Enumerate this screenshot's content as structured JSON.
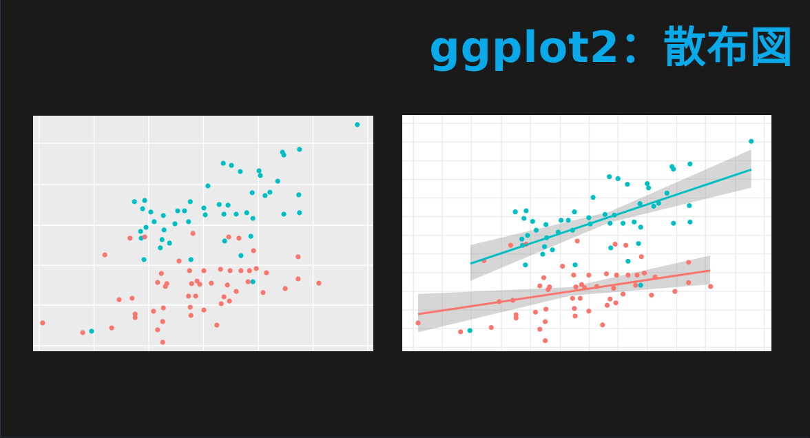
{
  "title": "ggplot2：散布図",
  "chart_data": [
    {
      "type": "scatter",
      "theme": "grey",
      "tick_labels": false,
      "grid": true,
      "xlim": [
        0,
        100
      ],
      "ylim": [
        0,
        100
      ],
      "xticks": [
        1.8,
        17.9,
        34.0,
        50.1,
        66.2,
        82.3,
        98.4
      ],
      "yticks": [
        2.3,
        19.6,
        36.5,
        53.5,
        70.8,
        88.3
      ],
      "series": [
        {
          "color": "#00bfc4",
          "x": [
            95.3,
            78.3,
            73.3,
            73.7,
            55.9,
            58.3,
            60.9,
            66.4,
            66.8,
            51.4,
            71.9,
            69.6,
            68.2,
            64.4,
            78.1,
            29.8,
            32.8,
            46.2,
            54.7,
            57.3,
            32.2,
            34.6,
            38.3,
            42.5,
            44.5,
            50.2,
            50.6,
            56.1,
            59.7,
            62.8,
            64.6,
            73.7,
            78.3,
            35.6,
            33.2,
            31.6,
            38.5,
            41.7,
            45.7,
            31.8,
            37.9,
            40.1,
            56.3,
            64.0,
            37.4,
            61.1,
            32.6,
            46.4,
            64.6,
            17.2
          ],
          "values": [
            96.2,
            85.7,
            84.5,
            83.3,
            79.8,
            78.9,
            76.3,
            76.6,
            74.6,
            70.2,
            72.2,
            67.5,
            66.1,
            67.3,
            66.4,
            63.5,
            64.0,
            63.5,
            62.3,
            62.0,
            60.5,
            59.1,
            57.6,
            59.6,
            59.6,
            60.8,
            57.9,
            58.2,
            58.2,
            58.8,
            56.4,
            58.2,
            58.8,
            55.0,
            52.6,
            50.9,
            51.5,
            54.1,
            55.0,
            48.0,
            47.4,
            45.9,
            46.8,
            48.8,
            43.9,
            40.6,
            38.9,
            38.9,
            29.5,
            8.5
          ]
        },
        {
          "color": "#f8766d",
          "x": [
            2.8,
            14.6,
            23.1,
            21.1,
            28.5,
            32.8,
            47.0,
            57.5,
            60.5,
            64.8,
            42.9,
            77.9,
            37.7,
            46.0,
            50.2,
            55.1,
            57.9,
            61.1,
            63.6,
            65.6,
            68.6,
            36.6,
            39.3,
            38.9,
            46.6,
            48.2,
            49.0,
            52.4,
            63.2,
            57.1,
            77.9,
            84.0,
            74.1,
            67.6,
            59.7,
            25.3,
            29.1,
            45.7,
            47.8,
            56.1,
            57.7,
            55.3,
            50.2,
            30.0,
            30.0,
            35.4,
            38.3,
            46.2,
            46.4,
            38.1,
            36.6,
            38.1,
            54.0
          ],
          "values": [
            12.0,
            7.9,
            9.9,
            40.9,
            48.0,
            48.5,
            50.0,
            48.5,
            48.0,
            42.7,
            38.3,
            40.1,
            33.0,
            34.2,
            34.2,
            34.8,
            34.2,
            34.2,
            34.2,
            35.1,
            33.3,
            29.2,
            28.7,
            27.5,
            28.7,
            29.8,
            28.4,
            28.9,
            29.5,
            28.1,
            30.7,
            28.9,
            26.6,
            24.9,
            25.4,
            21.9,
            22.5,
            23.4,
            23.4,
            23.1,
            21.3,
            20.2,
            17.5,
            15.8,
            14.3,
            17.0,
            18.4,
            18.7,
            15.2,
            12.6,
            9.1,
            3.8,
            11.1
          ]
        }
      ]
    },
    {
      "type": "scatter",
      "theme": "minimal",
      "tick_labels": false,
      "grid": true,
      "xlim": [
        -1.6,
        100.9
      ],
      "ylim": [
        -1.1,
        108.4
      ],
      "xticks": [
        1.5,
        9.5,
        17.6,
        26.0,
        34.0,
        42.3,
        50.3,
        58.3,
        66.4,
        74.6,
        82.6,
        90.9,
        98.9
      ],
      "yticks": [
        0.7,
        9.4,
        18.0,
        26.7,
        35.3,
        44.0,
        52.6,
        61.3,
        69.9,
        78.6,
        87.2,
        95.9,
        104.5
      ],
      "series": [
        {
          "color": "#00bfc4",
          "x": [
            95.3,
            78.3,
            73.3,
            73.7,
            55.9,
            58.3,
            60.9,
            66.4,
            66.8,
            51.4,
            71.9,
            69.6,
            68.2,
            64.4,
            78.1,
            29.8,
            32.8,
            46.2,
            54.7,
            57.3,
            32.2,
            34.6,
            38.3,
            42.5,
            44.5,
            50.2,
            50.6,
            56.1,
            59.7,
            62.8,
            64.6,
            73.7,
            78.3,
            35.6,
            33.2,
            31.6,
            38.5,
            41.7,
            45.7,
            31.8,
            37.9,
            40.1,
            56.3,
            64.0,
            37.4,
            61.1,
            32.6,
            46.4,
            64.6,
            17.2
          ],
          "values": [
            96.2,
            85.7,
            84.5,
            83.3,
            79.8,
            78.9,
            76.3,
            76.6,
            74.6,
            70.2,
            72.2,
            67.5,
            66.1,
            67.3,
            66.4,
            63.5,
            64.0,
            63.5,
            62.3,
            62.0,
            60.5,
            59.1,
            57.6,
            59.6,
            59.6,
            60.8,
            57.9,
            58.2,
            58.2,
            58.8,
            56.4,
            58.2,
            58.8,
            55.0,
            52.6,
            50.9,
            51.5,
            54.1,
            55.0,
            48.0,
            47.4,
            45.9,
            46.8,
            48.8,
            43.9,
            40.6,
            38.9,
            38.9,
            29.5,
            8.5
          ],
          "fit": {
            "x": [
              17.3,
              95.3
            ],
            "y": [
              39.5,
              83.1
            ]
          },
          "band": {
            "x": [
              17.3,
              56,
              95.3
            ],
            "lower": [
              31.5,
              58.6,
              74.7
            ],
            "upper": [
              48.1,
              63.6,
              92.4
            ]
          }
        },
        {
          "color": "#f8766d",
          "x": [
            2.8,
            14.6,
            23.1,
            21.1,
            28.5,
            32.8,
            47.0,
            57.5,
            60.5,
            64.8,
            42.9,
            77.9,
            37.7,
            46.0,
            50.2,
            55.1,
            57.9,
            61.1,
            63.6,
            65.6,
            68.6,
            36.6,
            39.3,
            38.9,
            46.6,
            48.2,
            49.0,
            52.4,
            63.2,
            57.1,
            77.9,
            84.0,
            74.1,
            67.6,
            59.7,
            25.3,
            29.1,
            45.7,
            47.8,
            56.1,
            57.7,
            55.3,
            50.2,
            30.0,
            30.0,
            35.4,
            38.3,
            46.2,
            46.4,
            38.1,
            36.6,
            38.1,
            54.0
          ],
          "values": [
            12.0,
            7.9,
            9.9,
            40.9,
            48.0,
            48.5,
            50.0,
            48.5,
            48.0,
            42.7,
            38.3,
            40.1,
            33.0,
            34.2,
            34.2,
            34.8,
            34.2,
            34.2,
            34.2,
            35.1,
            33.3,
            29.2,
            28.7,
            27.5,
            28.7,
            29.8,
            28.4,
            28.9,
            29.5,
            28.1,
            30.7,
            28.9,
            26.6,
            24.9,
            25.4,
            21.9,
            22.5,
            23.4,
            23.4,
            23.1,
            21.3,
            20.2,
            17.5,
            15.8,
            14.3,
            17.0,
            18.4,
            18.7,
            15.2,
            12.6,
            9.1,
            3.8,
            11.1
          ],
          "fit": {
            "x": [
              2.8,
              83.9
            ],
            "y": [
              16.1,
              36.3
            ]
          },
          "band": {
            "x": [
              2.8,
              45,
              83.9
            ],
            "lower": [
              7.7,
              24.6,
              29.9
            ],
            "upper": [
              25.4,
              28.6,
              43.3
            ]
          }
        }
      ]
    }
  ]
}
